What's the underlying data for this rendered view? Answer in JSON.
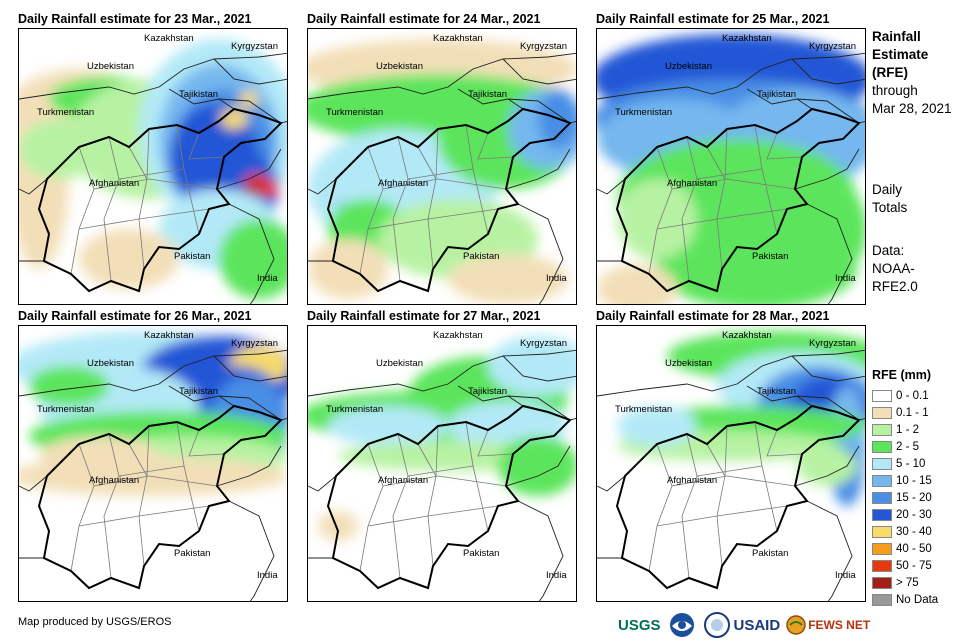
{
  "panels": [
    {
      "title": "Daily Rainfall estimate for 23 Mar., 2021",
      "day": 0
    },
    {
      "title": "Daily Rainfall estimate for 24 Mar., 2021",
      "day": 1
    },
    {
      "title": "Daily Rainfall estimate for 25 Mar., 2021",
      "day": 2
    },
    {
      "title": "Daily Rainfall estimate for 26 Mar., 2021",
      "day": 3
    },
    {
      "title": "Daily Rainfall estimate for 27 Mar., 2021",
      "day": 4
    },
    {
      "title": "Daily Rainfall estimate for 28 Mar., 2021",
      "day": 5
    }
  ],
  "countries": {
    "kazakhstan": "Kazakhstan",
    "kyrgyzstan": "Kyrgyzstan",
    "uzbekistan": "Uzbekistan",
    "tajikistan": "Tajikistan",
    "turkmenistan": "Turkmenistan",
    "afghanistan": "Afghanistan",
    "pakistan": "Pakistan",
    "india": "India"
  },
  "side": {
    "title_line1": "Rainfall",
    "title_line2": "Estimate",
    "title_line3": "(RFE)",
    "through": "through",
    "date": "Mar 28, 2021",
    "daily_line1": "Daily",
    "daily_line2": "Totals",
    "data_line1": "Data:",
    "data_line2": "NOAA-",
    "data_line3": "RFE2.0"
  },
  "legend": {
    "title": "RFE (mm)",
    "items": [
      {
        "label": "0 - 0.1",
        "color": "#ffffff"
      },
      {
        "label": "0.1 - 1",
        "color": "#f2dfb8"
      },
      {
        "label": "1 - 2",
        "color": "#b7f2a3"
      },
      {
        "label": "2 - 5",
        "color": "#5be55b"
      },
      {
        "label": "5 - 10",
        "color": "#b3e9f7"
      },
      {
        "label": "10 - 15",
        "color": "#74b7ee"
      },
      {
        "label": "15 - 20",
        "color": "#4a8ee5"
      },
      {
        "label": "20 - 30",
        "color": "#2456d6"
      },
      {
        "label": "30 - 40",
        "color": "#f7dc6b"
      },
      {
        "label": "40 - 50",
        "color": "#f49d1a"
      },
      {
        "label": "50 - 75",
        "color": "#e8380d"
      },
      {
        "label": "> 75",
        "color": "#a3201a"
      },
      {
        "label": "No Data",
        "color": "#999999"
      }
    ]
  },
  "footer": {
    "credit": "Map produced by USGS/EROS",
    "logo_usgs": "USGS",
    "logo_usaid": "USAID",
    "logo_fewsnet": "FEWS NET"
  }
}
